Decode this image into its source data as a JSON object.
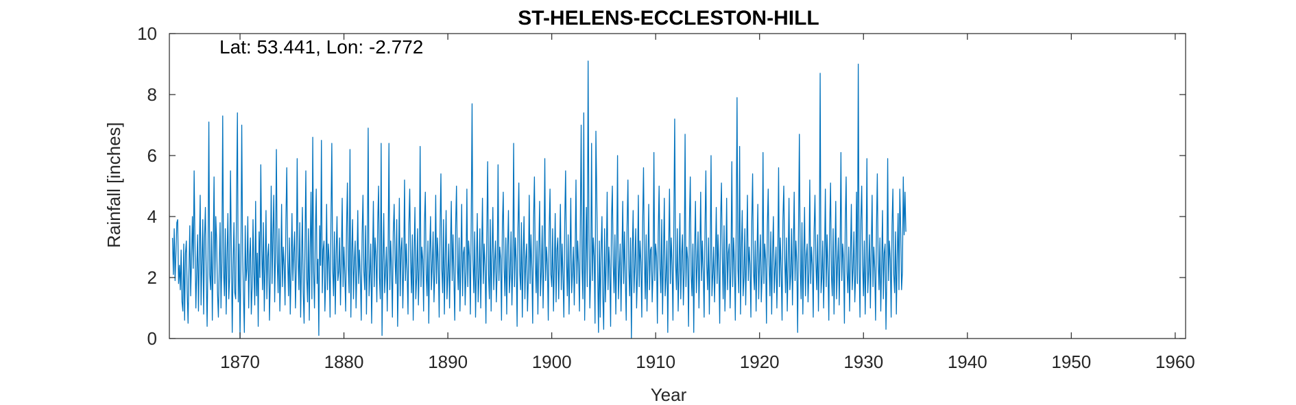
{
  "chart_data": {
    "type": "line",
    "title": "ST-HELENS-ECCLESTON-HILL",
    "xlabel": "Year",
    "ylabel": "Rainfall [inches]",
    "annotation": "Lat: 53.441, Lon: -2.772",
    "xlim": [
      1863.2,
      1961
    ],
    "ylim": [
      0,
      10
    ],
    "xticks": [
      1870,
      1880,
      1890,
      1900,
      1910,
      1920,
      1930,
      1940,
      1950,
      1960
    ],
    "yticks": [
      0,
      2,
      4,
      6,
      8,
      10
    ],
    "grid": false,
    "series_color": "#0072bd",
    "series": [
      {
        "x_start": 1863.5,
        "x_step": 0.08333,
        "values": [
          3.3,
          2.1,
          3.6,
          1.9,
          2.8,
          3.8,
          3.9,
          1.8,
          2.4,
          1.6,
          2.9,
          1.2,
          0.9,
          3.1,
          0.6,
          2.8,
          3.2,
          1.5,
          0.5,
          2.2,
          3.7,
          1.4,
          2.6,
          4.0,
          2.3,
          5.5,
          3.1,
          1.0,
          2.2,
          3.4,
          0.9,
          2.8,
          4.7,
          1.1,
          2.5,
          3.9,
          0.8,
          3.3,
          4.3,
          2.0,
          0.4,
          2.6,
          7.1,
          2.1,
          1.6,
          3.5,
          0.6,
          2.9,
          5.3,
          1.8,
          4.0,
          3.2,
          1.5,
          0.7,
          2.3,
          3.8,
          1.0,
          2.5,
          7.3,
          2.2,
          1.4,
          3.6,
          0.8,
          2.7,
          4.1,
          1.3,
          2.0,
          5.5,
          2.9,
          0.2,
          2.4,
          3.8,
          1.5,
          1.3,
          4.6,
          7.4,
          1.2,
          3.1,
          0.0,
          2.5,
          7.0,
          2.8,
          1.4,
          0.2,
          3.7,
          1.9,
          2.3,
          4.0,
          1.0,
          2.6,
          3.3,
          0.8,
          1.7,
          3.9,
          2.2,
          1.1,
          4.5,
          1.4,
          2.8,
          0.4,
          3.5,
          2.0,
          5.7,
          2.9,
          1.6,
          3.8,
          0.9,
          2.4,
          4.2,
          1.3,
          2.7,
          3.1,
          0.6,
          2.0,
          5.0,
          1.8,
          3.4,
          4.7,
          1.2,
          2.9,
          6.2,
          2.5,
          1.5,
          3.6,
          0.9,
          2.1,
          4.4,
          1.7,
          3.0,
          2.4,
          1.1,
          3.9,
          5.6,
          2.6,
          1.4,
          3.3,
          0.8,
          2.2,
          4.1,
          1.9,
          2.8,
          3.5,
          1.0,
          2.3,
          5.9,
          2.7,
          1.6,
          3.8,
          0.7,
          2.5,
          4.3,
          1.5,
          0.5,
          3.0,
          5.5,
          2.0,
          1.2,
          3.6,
          0.6,
          2.9,
          4.8,
          1.3,
          6.6,
          2.2,
          1.0,
          3.4,
          4.9,
          1.8,
          2.6,
          0.1,
          3.7,
          2.4,
          6.5,
          1.5,
          2.9,
          3.2,
          0.9,
          2.0,
          4.4,
          1.6,
          3.1,
          2.5,
          0.7,
          3.8,
          6.4,
          2.3,
          1.4,
          3.5,
          0.8,
          2.7,
          4.0,
          1.9,
          2.2,
          3.3,
          1.1,
          2.6,
          4.6,
          1.7,
          3.0,
          2.1,
          0.9,
          3.6,
          5.1,
          2.4,
          1.5,
          6.2,
          0.7,
          2.8,
          3.9,
          1.3,
          2.5,
          3.2,
          1.0,
          2.3,
          4.2,
          1.8,
          2.9,
          2.0,
          0.6,
          3.4,
          4.7,
          2.2,
          1.6,
          3.7,
          0.8,
          2.6,
          6.9,
          1.4,
          2.1,
          3.1,
          0.5,
          2.4,
          4.5,
          1.7,
          3.3,
          2.7,
          1.2,
          3.8,
          5.0,
          2.0,
          1.3,
          6.4,
          0.1,
          2.5,
          4.1,
          1.5,
          2.2,
          3.0,
          0.9,
          2.8,
          6.4,
          1.6,
          3.2,
          2.3,
          0.7,
          3.5,
          4.4,
          2.6,
          1.8,
          3.9,
          0.4,
          2.1,
          4.6,
          1.4,
          2.9,
          3.3,
          1.0,
          2.4,
          5.2,
          1.9,
          3.1,
          2.2,
          0.8,
          3.7,
          4.9,
          2.5,
          1.5,
          3.4,
          0.6,
          2.7,
          4.3,
          1.3,
          2.0,
          3.6,
          1.1,
          2.3,
          6.3,
          1.7,
          3.0,
          2.6,
          0.9,
          3.8,
          4.8,
          2.1,
          1.4,
          3.2,
          0.5,
          2.8,
          4.0,
          1.6,
          2.4,
          3.5,
          1.2,
          2.2,
          4.7,
          1.8,
          3.3,
          2.5,
          0.7,
          3.6,
          5.4,
          2.3,
          1.5,
          3.9,
          0.8,
          2.6,
          4.2,
          1.3,
          2.1,
          3.1,
          1.0,
          2.9,
          4.5,
          1.9,
          3.4,
          2.0,
          0.6,
          3.7,
          5.0,
          2.4,
          1.6,
          3.3,
          0.9,
          2.5,
          4.4,
          1.4,
          2.8,
          3.0,
          1.1,
          2.2,
          4.9,
          1.7,
          3.2,
          2.7,
          0.8,
          3.8,
          7.7,
          2.6,
          1.5,
          3.5,
          0.7,
          2.3,
          4.1,
          1.2,
          2.0,
          3.6,
          1.0,
          2.7,
          4.6,
          1.8,
          3.1,
          2.4,
          0.5,
          3.4,
          5.8,
          2.1,
          1.3,
          3.9,
          0.9,
          2.8,
          4.3,
          1.6,
          2.5,
          3.2,
          1.2,
          2.2,
          5.7,
          1.9,
          3.0,
          2.6,
          0.6,
          3.7,
          4.8,
          2.3,
          1.4,
          3.3,
          0.8,
          2.9,
          4.2,
          1.5,
          2.1,
          3.5,
          1.1,
          2.4,
          6.4,
          1.7,
          3.3,
          2.5,
          0.4,
          3.6,
          5.1,
          2.2,
          1.6,
          3.8,
          0.7,
          2.7,
          4.0,
          1.3,
          2.6,
          3.1,
          0.9,
          2.0,
          4.7,
          1.8,
          3.4,
          2.3,
          0.5,
          3.9,
          5.3,
          2.5,
          1.5,
          3.2,
          0.8,
          2.8,
          4.5,
          1.4,
          2.2,
          3.7,
          1.0,
          2.6,
          5.9,
          1.9,
          3.0,
          2.4,
          0.6,
          3.5,
          4.9,
          2.1,
          1.7,
          3.6,
          0.9,
          2.3,
          4.1,
          1.2,
          2.9,
          3.3,
          1.3,
          2.7,
          4.4,
          1.6,
          3.1,
          2.0,
          0.7,
          3.8,
          5.5,
          2.6,
          1.4,
          3.4,
          0.8,
          2.5,
          4.6,
          1.5,
          2.2,
          3.0,
          1.1,
          2.8,
          5.2,
          1.8,
          3.2,
          2.4,
          0.9,
          3.7,
          7.0,
          2.3,
          1.3,
          7.4,
          0.6,
          2.6,
          4.3,
          1.7,
          9.1,
          3.5,
          1.0,
          2.1,
          6.4,
          1.9,
          3.3,
          2.7,
          0.5,
          6.8,
          4.7,
          2.2,
          0.2,
          3.2,
          0.7,
          2.9,
          4.0,
          1.4,
          0.3,
          3.6,
          1.2,
          2.5,
          4.8,
          1.6,
          3.0,
          2.3,
          0.4,
          3.9,
          5.0,
          2.4,
          1.5,
          3.4,
          0.8,
          2.7,
          6.0,
          1.3,
          2.2,
          3.1,
          0.9,
          2.6,
          4.5,
          1.8,
          3.5,
          2.0,
          0.6,
          3.7,
          5.2,
          2.3,
          1.4,
          3.3,
          0.0,
          2.8,
          4.2,
          1.5,
          2.4,
          3.6,
          1.0,
          2.1,
          4.7,
          1.7,
          3.2,
          2.5,
          0.7,
          3.8,
          5.6,
          2.6,
          1.3,
          3.4,
          0.9,
          2.4,
          4.4,
          1.6,
          2.9,
          3.0,
          1.2,
          2.2,
          6.1,
          1.9,
          3.1,
          2.7,
          0.5,
          3.5,
          5.0,
          2.3,
          1.5,
          3.9,
          0.8,
          2.6,
          4.6,
          1.4,
          2.0,
          3.2,
          0.2,
          2.8,
          4.9,
          1.8,
          3.3,
          2.4,
          0.6,
          3.7,
          7.2,
          2.5,
          1.6,
          3.6,
          0.9,
          2.2,
          4.1,
          1.3,
          2.7,
          3.4,
          1.1,
          2.3,
          6.7,
          1.7,
          3.0,
          2.6,
          0.4,
          3.8,
          5.3,
          2.1,
          1.4,
          3.1,
          0.2,
          2.9,
          4.5,
          1.5,
          2.4,
          3.5,
          1.0,
          2.6,
          4.8,
          1.9,
          3.2,
          2.2,
          0.7,
          3.6,
          5.5,
          2.4,
          1.6,
          3.3,
          0.8,
          2.7,
          6.0,
          1.4,
          2.1,
          3.0,
          1.2,
          2.5,
          4.3,
          1.8,
          3.4,
          2.3,
          0.5,
          3.9,
          5.1,
          2.6,
          1.3,
          3.7,
          0.9,
          2.2,
          4.6,
          1.6,
          2.8,
          3.1,
          1.0,
          2.4,
          5.8,
          1.7,
          3.3,
          2.5,
          0.6,
          3.5,
          7.9,
          2.3,
          1.5,
          6.3,
          0.8,
          2.9,
          4.2,
          1.4,
          2.0,
          3.6,
          1.1,
          2.7,
          4.7,
          1.9,
          3.0,
          2.4,
          0.7,
          3.8,
          5.4,
          2.2,
          1.6,
          3.2,
          0.9,
          2.6,
          4.4,
          1.3,
          2.5,
          3.4,
          1.2,
          2.1,
          6.1,
          1.8,
          3.1,
          2.6,
          0.5,
          3.7,
          4.9,
          2.4,
          1.4,
          3.5,
          0.8,
          2.8,
          4.0,
          1.5,
          2.3,
          3.0,
          1.0,
          2.5,
          5.6,
          1.7,
          3.3,
          2.2,
          0.6,
          3.9,
          5.0,
          2.7,
          1.5,
          3.3,
          0.9,
          2.4,
          4.6,
          1.6,
          2.1,
          3.6,
          1.1,
          2.9,
          4.8,
          1.9,
          3.2,
          2.5,
          0.2,
          3.6,
          6.7,
          2.3,
          1.3,
          3.8,
          0.8,
          2.6,
          4.3,
          1.4,
          2.7,
          3.1,
          1.2,
          2.2,
          5.2,
          1.8,
          3.0,
          2.4,
          0.7,
          3.5,
          4.7,
          2.5,
          1.6,
          3.4,
          0.9,
          2.8,
          8.7,
          1.5,
          2.0,
          3.2,
          1.0,
          2.6,
          4.9,
          1.7,
          3.4,
          2.3,
          0.6,
          3.7,
          5.1,
          2.1,
          1.4,
          3.6,
          0.8,
          2.5,
          4.5,
          1.3,
          2.4,
          3.3,
          1.1,
          2.8,
          6.1,
          1.9,
          3.1,
          2.6,
          0.5,
          3.8,
          5.3,
          2.2,
          1.5,
          3.0,
          0.9,
          2.7,
          4.4,
          1.6,
          2.3,
          3.5,
          1.2,
          2.1,
          4.8,
          1.8,
          9.0,
          2.5,
          0.7,
          3.9,
          5.0,
          2.4,
          1.4,
          3.2,
          0.8,
          2.6,
          5.9,
          1.5,
          2.2,
          3.4,
          1.0,
          2.9,
          4.7,
          1.7,
          3.0,
          2.3,
          0.6,
          3.6,
          5.4,
          2.5,
          1.6,
          3.3,
          0.9,
          2.4,
          4.2,
          1.3,
          2.8,
          3.1,
          0.3,
          2.2,
          5.9,
          1.9,
          3.2,
          2.6,
          0.7,
          3.7,
          4.9,
          2.1,
          1.5,
          3.5,
          0.8,
          2.7,
          4.1,
          1.6,
          4.9,
          3.6,
          1.6,
          2.2,
          5.3,
          3.4,
          4.8,
          3.5
        ]
      }
    ]
  }
}
